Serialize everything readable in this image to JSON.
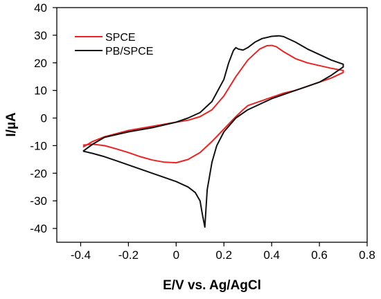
{
  "chart_data": {
    "type": "line",
    "title": "",
    "xlabel": "E/V vs. Ag/AgCl",
    "ylabel": "I/µA",
    "xlim": [
      -0.5,
      0.8
    ],
    "ylim": [
      -45,
      40
    ],
    "x_ticks": [
      -0.4,
      -0.2,
      0,
      0.2,
      0.4,
      0.6,
      0.8
    ],
    "x_tick_labels": [
      "-0.4",
      "-0.2",
      "0",
      "0.2",
      "0.4",
      "0.6",
      "0.8"
    ],
    "y_ticks": [
      -40,
      -30,
      -20,
      -10,
      0,
      10,
      20,
      30,
      40
    ],
    "y_tick_labels": [
      "-40",
      "-30",
      "-20",
      "-10",
      "0",
      "10",
      "20",
      "30",
      "40"
    ],
    "grid": false,
    "legend_position": "top-left",
    "series": [
      {
        "name": "SPCE",
        "color": "#ee2222",
        "x": [
          -0.39,
          -0.35,
          -0.3,
          -0.2,
          -0.1,
          0.0,
          0.05,
          0.1,
          0.15,
          0.2,
          0.25,
          0.3,
          0.35,
          0.38,
          0.4,
          0.42,
          0.45,
          0.5,
          0.55,
          0.6,
          0.65,
          0.7,
          0.7,
          0.65,
          0.6,
          0.55,
          0.5,
          0.45,
          0.4,
          0.35,
          0.3,
          0.28,
          0.25,
          0.2,
          0.15,
          0.1,
          0.05,
          0.0,
          -0.05,
          -0.1,
          -0.15,
          -0.2,
          -0.25,
          -0.3,
          -0.35,
          -0.39
        ],
        "y": [
          -10.5,
          -8.5,
          -6.8,
          -4.5,
          -3.0,
          -1.5,
          -0.8,
          0.5,
          3.0,
          8.0,
          15.0,
          21.0,
          25.0,
          26.2,
          26.3,
          25.8,
          24.0,
          21.5,
          20.0,
          19.0,
          18.0,
          17.2,
          16.5,
          14.5,
          13.0,
          11.5,
          10.0,
          9.0,
          7.5,
          6.0,
          4.5,
          3.0,
          0.5,
          -4.0,
          -8.5,
          -12.5,
          -15.0,
          -16.2,
          -16.0,
          -15.2,
          -14.0,
          -12.5,
          -11.2,
          -10.0,
          -9.5,
          -9.8
        ]
      },
      {
        "name": "PB/SPCE",
        "color": "#111111",
        "x": [
          -0.39,
          -0.35,
          -0.3,
          -0.2,
          -0.1,
          0.0,
          0.05,
          0.1,
          0.15,
          0.2,
          0.22,
          0.24,
          0.25,
          0.26,
          0.28,
          0.3,
          0.33,
          0.36,
          0.4,
          0.43,
          0.45,
          0.5,
          0.55,
          0.6,
          0.65,
          0.7,
          0.7,
          0.65,
          0.6,
          0.55,
          0.5,
          0.45,
          0.4,
          0.35,
          0.3,
          0.25,
          0.2,
          0.17,
          0.15,
          0.13,
          0.12,
          0.11,
          0.1,
          0.08,
          0.05,
          0.0,
          -0.05,
          -0.1,
          -0.15,
          -0.2,
          -0.25,
          -0.3,
          -0.35,
          -0.39
        ],
        "y": [
          -12.0,
          -9.5,
          -7.0,
          -5.0,
          -3.5,
          -1.5,
          0.0,
          2.0,
          6.0,
          14.0,
          20.0,
          24.5,
          25.5,
          25.0,
          24.6,
          25.5,
          27.5,
          28.8,
          29.6,
          29.8,
          29.5,
          27.5,
          25.0,
          23.0,
          21.0,
          19.5,
          18.5,
          15.5,
          13.0,
          11.5,
          10.0,
          8.5,
          7.0,
          5.0,
          3.0,
          0.0,
          -5.0,
          -10.0,
          -16.0,
          -26.0,
          -39.5,
          -35.0,
          -30.0,
          -27.0,
          -25.0,
          -23.0,
          -21.5,
          -20.0,
          -18.5,
          -17.0,
          -15.5,
          -14.0,
          -12.8,
          -12.0
        ]
      }
    ]
  }
}
